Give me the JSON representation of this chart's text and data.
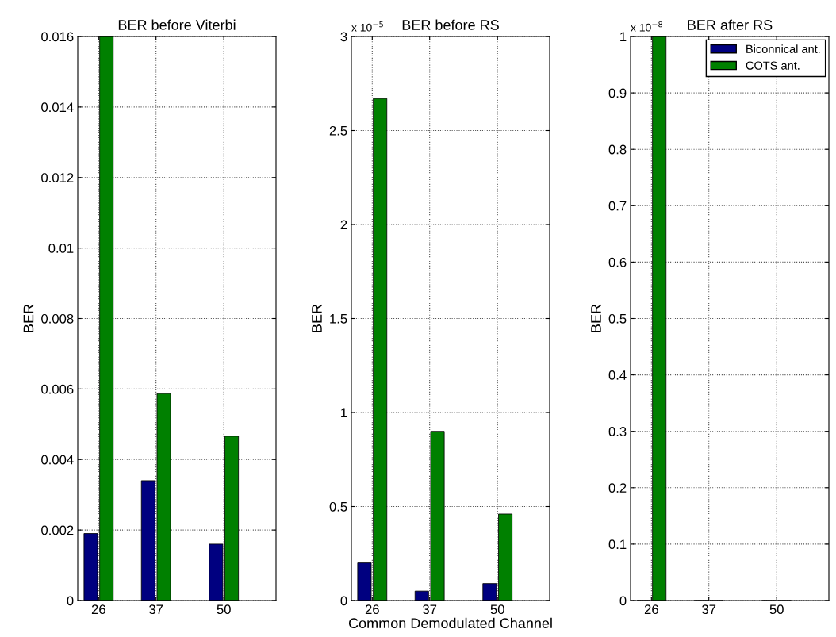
{
  "chart_data": [
    {
      "type": "bar",
      "title": "BER before Viterbi",
      "ylabel": "BER",
      "x": [
        26,
        37,
        50
      ],
      "xlim": [
        22,
        60
      ],
      "xticks": [
        26,
        37,
        50
      ],
      "ylim": [
        0,
        0.016
      ],
      "yticks": [
        0,
        0.002,
        0.004,
        0.006,
        0.008,
        0.01,
        0.012,
        0.014,
        0.016
      ],
      "grid": true,
      "legend": false,
      "series": [
        {
          "color": "#000080",
          "values": [
            0.0019,
            0.0034,
            0.0016
          ]
        },
        {
          "color": "#008000",
          "values": [
            0.016,
            0.00587,
            0.00466
          ]
        }
      ]
    },
    {
      "type": "bar",
      "title": "BER before RS",
      "ylabel": "BER",
      "xlabel": "Common Demodulated Channel",
      "annotations": [
        "x 10$^{−5}$"
      ],
      "x": [
        26,
        37,
        50
      ],
      "xlim": [
        22,
        60
      ],
      "xticks": [
        26,
        37,
        50
      ],
      "ylim": [
        0,
        3
      ],
      "yticks": [
        0,
        0.5,
        1,
        1.5,
        2,
        2.5,
        3
      ],
      "grid": true,
      "legend": false,
      "series": [
        {
          "color": "#000080",
          "values": [
            0.2,
            0.05,
            0.09
          ]
        },
        {
          "color": "#008000",
          "values": [
            2.67,
            0.9,
            0.46
          ]
        }
      ]
    },
    {
      "type": "bar",
      "title": "BER after RS",
      "ylabel": "BER",
      "annotations": [
        "x 10$^{−8}$"
      ],
      "x": [
        26,
        37,
        50
      ],
      "xlim": [
        22,
        60
      ],
      "xticks": [
        26,
        37,
        50
      ],
      "ylim": [
        0,
        1
      ],
      "yticks": [
        0,
        0.1,
        0.2,
        0.3,
        0.4,
        0.5,
        0.6,
        0.7,
        0.8,
        0.9,
        1
      ],
      "grid": true,
      "legend": "top right",
      "series": [
        {
          "name": "Biconnical ant.",
          "color": "#000080",
          "values": [
            0,
            0,
            0
          ]
        },
        {
          "name": "COTS ant.",
          "color": "#008000",
          "values": [
            1,
            0,
            0
          ]
        }
      ]
    }
  ]
}
